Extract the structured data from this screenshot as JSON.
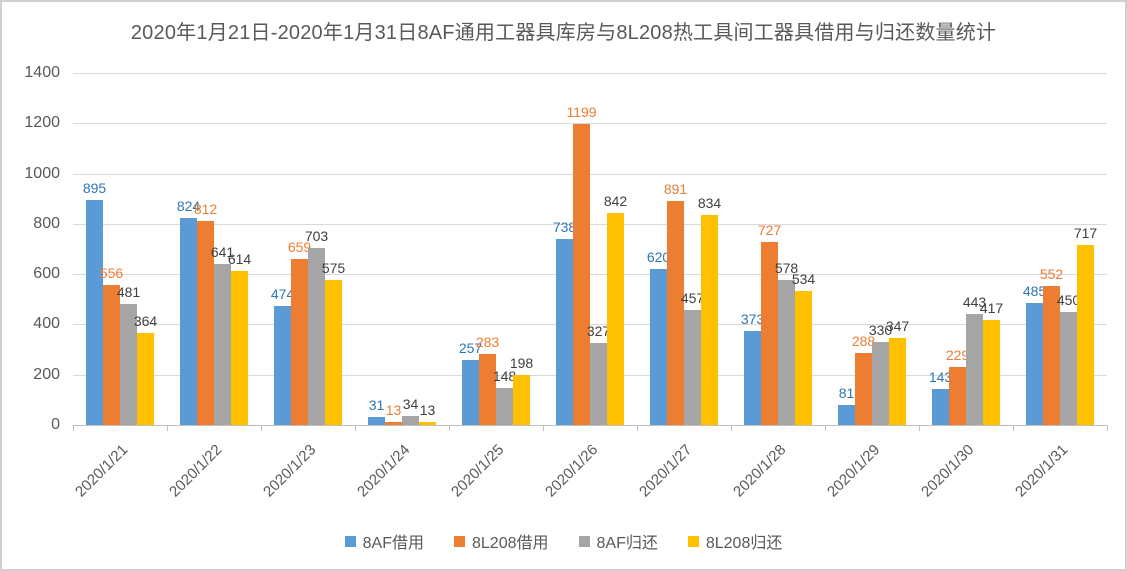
{
  "window": {
    "background": "#ffffff",
    "border_color": "#d0d0d0"
  },
  "chart_data": {
    "type": "bar",
    "title": "2020年1月21日-2020年1月31日8AF通用工器具库房与8L208热工具间工器具借用与归还数量统计",
    "categories": [
      "2020/1/21",
      "2020/1/22",
      "2020/1/23",
      "2020/1/24",
      "2020/1/25",
      "2020/1/26",
      "2020/1/27",
      "2020/1/28",
      "2020/1/29",
      "2020/1/30",
      "2020/1/31"
    ],
    "series": [
      {
        "name": "8AF借用",
        "color": "#5B9BD5",
        "label_color": "#2E75B6",
        "values": [
          895,
          824,
          474,
          31,
          257,
          738,
          620,
          373,
          81,
          143,
          485
        ]
      },
      {
        "name": "8L208借用",
        "color": "#ED7D31",
        "label_color": "#ED7D31",
        "values": [
          556,
          812,
          659,
          13,
          283,
          1199,
          891,
          727,
          288,
          229,
          552
        ]
      },
      {
        "name": "8AF归还",
        "color": "#A5A5A5",
        "label_color": "#404040",
        "values": [
          481,
          641,
          703,
          34,
          148,
          327,
          457,
          578,
          330,
          443,
          450
        ]
      },
      {
        "name": "8L208归还",
        "color": "#FFC000",
        "label_color": "#404040",
        "values": [
          364,
          614,
          575,
          13,
          198,
          842,
          834,
          534,
          347,
          417,
          717
        ]
      }
    ],
    "ylabel": "",
    "xlabel": "",
    "ylim": [
      0,
      1400
    ],
    "y_ticks": [
      0,
      200,
      400,
      600,
      800,
      1000,
      1200,
      1400
    ],
    "grid": true,
    "data_labels": true,
    "legend_position": "bottom",
    "gridline_color": "#d9d9d9",
    "axis_color": "#bfbfbf",
    "tick_label_color": "#595959",
    "title_color": "#595959"
  }
}
